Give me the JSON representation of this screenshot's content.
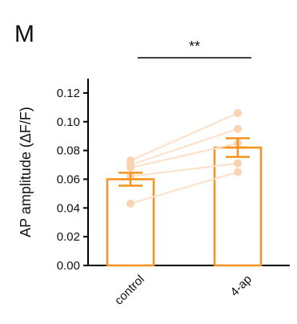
{
  "panel_label": "M",
  "colors": {
    "bar": "#f7921e",
    "points": "#fbd3b0",
    "lines": "#fde0c8",
    "axis": "#000000"
  },
  "chart_data": {
    "type": "bar",
    "ylabel": "AP amplitude (ΔF/F)",
    "xlabel": "",
    "categories": [
      "control",
      "4-ap"
    ],
    "values": [
      0.06,
      0.082
    ],
    "error": [
      0.0045,
      0.0065
    ],
    "ylim": [
      0,
      0.13
    ],
    "yticks": [
      0.0,
      0.02,
      0.04,
      0.06,
      0.08,
      0.1,
      0.12
    ],
    "ytick_labels": [
      "0.00",
      "0.02",
      "0.04",
      "0.06",
      "0.08",
      "0.10",
      "0.12"
    ],
    "paired_points": [
      [
        0.073,
        0.106
      ],
      [
        0.07,
        0.095
      ],
      [
        0.068,
        0.085
      ],
      [
        0.062,
        0.071
      ],
      [
        0.043,
        0.065
      ]
    ],
    "significance": {
      "label": "**",
      "between": [
        "control",
        "4-ap"
      ]
    }
  }
}
